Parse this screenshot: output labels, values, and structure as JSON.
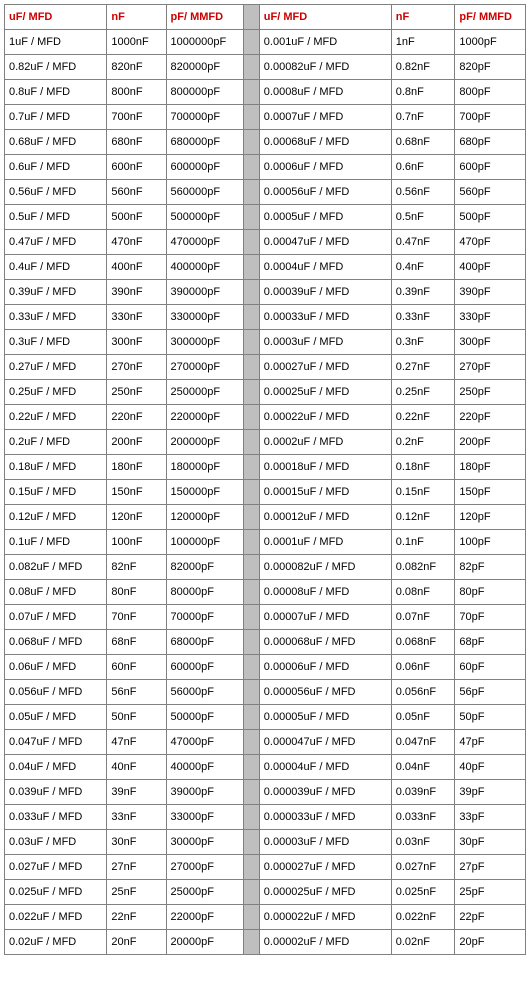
{
  "table": {
    "type": "table",
    "colors": {
      "header_text": "#cc0000",
      "body_text": "#000000",
      "border": "#808080",
      "spacer_bg": "#bfbfbf",
      "background": "#ffffff"
    },
    "fontsize": 11,
    "headers_left": [
      "uF/ MFD",
      "nF",
      "pF/ MMFD"
    ],
    "headers_right": [
      "uF/ MFD",
      "nF",
      "pF/ MMFD"
    ],
    "rows": [
      {
        "l": [
          "1uF / MFD",
          "1000nF",
          "1000000pF"
        ],
        "r": [
          "0.001uF / MFD",
          "1nF",
          "1000pF"
        ]
      },
      {
        "l": [
          "0.82uF / MFD",
          "820nF",
          "820000pF"
        ],
        "r": [
          "0.00082uF / MFD",
          "0.82nF",
          "820pF"
        ]
      },
      {
        "l": [
          "0.8uF / MFD",
          "800nF",
          "800000pF"
        ],
        "r": [
          "0.0008uF / MFD",
          "0.8nF",
          "800pF"
        ]
      },
      {
        "l": [
          "0.7uF / MFD",
          "700nF",
          "700000pF"
        ],
        "r": [
          "0.0007uF / MFD",
          "0.7nF",
          "700pF"
        ]
      },
      {
        "l": [
          "0.68uF / MFD",
          "680nF",
          "680000pF"
        ],
        "r": [
          "0.00068uF / MFD",
          "0.68nF",
          "680pF"
        ]
      },
      {
        "l": [
          "0.6uF / MFD",
          "600nF",
          "600000pF"
        ],
        "r": [
          "0.0006uF / MFD",
          "0.6nF",
          "600pF"
        ]
      },
      {
        "l": [
          "0.56uF / MFD",
          "560nF",
          "560000pF"
        ],
        "r": [
          "0.00056uF / MFD",
          "0.56nF",
          "560pF"
        ]
      },
      {
        "l": [
          "0.5uF / MFD",
          "500nF",
          "500000pF"
        ],
        "r": [
          "0.0005uF / MFD",
          "0.5nF",
          "500pF"
        ]
      },
      {
        "l": [
          "0.47uF / MFD",
          "470nF",
          "470000pF"
        ],
        "r": [
          "0.00047uF / MFD",
          "0.47nF",
          "470pF"
        ]
      },
      {
        "l": [
          "0.4uF / MFD",
          "400nF",
          "400000pF"
        ],
        "r": [
          "0.0004uF / MFD",
          "0.4nF",
          "400pF"
        ]
      },
      {
        "l": [
          "0.39uF / MFD",
          "390nF",
          "390000pF"
        ],
        "r": [
          "0.00039uF / MFD",
          "0.39nF",
          "390pF"
        ]
      },
      {
        "l": [
          "0.33uF / MFD",
          "330nF",
          "330000pF"
        ],
        "r": [
          "0.00033uF / MFD",
          "0.33nF",
          "330pF"
        ]
      },
      {
        "l": [
          "0.3uF / MFD",
          "300nF",
          "300000pF"
        ],
        "r": [
          "0.0003uF / MFD",
          "0.3nF",
          "300pF"
        ]
      },
      {
        "l": [
          "0.27uF / MFD",
          "270nF",
          "270000pF"
        ],
        "r": [
          "0.00027uF / MFD",
          "0.27nF",
          "270pF"
        ]
      },
      {
        "l": [
          "0.25uF / MFD",
          "250nF",
          "250000pF"
        ],
        "r": [
          "0.00025uF / MFD",
          "0.25nF",
          "250pF"
        ]
      },
      {
        "l": [
          "0.22uF / MFD",
          "220nF",
          "220000pF"
        ],
        "r": [
          "0.00022uF / MFD",
          "0.22nF",
          "220pF"
        ]
      },
      {
        "l": [
          "0.2uF / MFD",
          "200nF",
          "200000pF"
        ],
        "r": [
          "0.0002uF / MFD",
          "0.2nF",
          "200pF"
        ]
      },
      {
        "l": [
          "0.18uF / MFD",
          "180nF",
          "180000pF"
        ],
        "r": [
          "0.00018uF / MFD",
          "0.18nF",
          "180pF"
        ]
      },
      {
        "l": [
          "0.15uF / MFD",
          "150nF",
          "150000pF"
        ],
        "r": [
          "0.00015uF / MFD",
          "0.15nF",
          "150pF"
        ]
      },
      {
        "l": [
          "0.12uF / MFD",
          "120nF",
          "120000pF"
        ],
        "r": [
          "0.00012uF / MFD",
          "0.12nF",
          "120pF"
        ]
      },
      {
        "l": [
          "0.1uF / MFD",
          "100nF",
          "100000pF"
        ],
        "r": [
          "0.0001uF / MFD",
          "0.1nF",
          "100pF"
        ]
      },
      {
        "l": [
          "0.082uF / MFD",
          "82nF",
          "82000pF"
        ],
        "r": [
          "0.000082uF / MFD",
          "0.082nF",
          "82pF"
        ]
      },
      {
        "l": [
          "0.08uF / MFD",
          "80nF",
          "80000pF"
        ],
        "r": [
          "0.00008uF / MFD",
          "0.08nF",
          "80pF"
        ]
      },
      {
        "l": [
          "0.07uF / MFD",
          "70nF",
          "70000pF"
        ],
        "r": [
          "0.00007uF / MFD",
          "0.07nF",
          "70pF"
        ]
      },
      {
        "l": [
          "0.068uF / MFD",
          "68nF",
          "68000pF"
        ],
        "r": [
          "0.000068uF / MFD",
          "0.068nF",
          "68pF"
        ]
      },
      {
        "l": [
          "0.06uF / MFD",
          "60nF",
          "60000pF"
        ],
        "r": [
          "0.00006uF / MFD",
          "0.06nF",
          "60pF"
        ]
      },
      {
        "l": [
          "0.056uF / MFD",
          "56nF",
          "56000pF"
        ],
        "r": [
          "0.000056uF / MFD",
          "0.056nF",
          "56pF"
        ]
      },
      {
        "l": [
          "0.05uF / MFD",
          "50nF",
          "50000pF"
        ],
        "r": [
          "0.00005uF / MFD",
          "0.05nF",
          "50pF"
        ]
      },
      {
        "l": [
          "0.047uF / MFD",
          "47nF",
          "47000pF"
        ],
        "r": [
          "0.000047uF / MFD",
          "0.047nF",
          "47pF"
        ]
      },
      {
        "l": [
          "0.04uF / MFD",
          "40nF",
          "40000pF"
        ],
        "r": [
          "0.00004uF / MFD",
          "0.04nF",
          "40pF"
        ]
      },
      {
        "l": [
          "0.039uF / MFD",
          "39nF",
          "39000pF"
        ],
        "r": [
          "0.000039uF / MFD",
          "0.039nF",
          "39pF"
        ]
      },
      {
        "l": [
          "0.033uF / MFD",
          "33nF",
          "33000pF"
        ],
        "r": [
          "0.000033uF / MFD",
          "0.033nF",
          "33pF"
        ]
      },
      {
        "l": [
          "0.03uF / MFD",
          "30nF",
          "30000pF"
        ],
        "r": [
          "0.00003uF / MFD",
          "0.03nF",
          "30pF"
        ]
      },
      {
        "l": [
          "0.027uF / MFD",
          "27nF",
          "27000pF"
        ],
        "r": [
          "0.000027uF / MFD",
          "0.027nF",
          "27pF"
        ]
      },
      {
        "l": [
          "0.025uF / MFD",
          "25nF",
          "25000pF"
        ],
        "r": [
          "0.000025uF / MFD",
          "0.025nF",
          "25pF"
        ]
      },
      {
        "l": [
          "0.022uF / MFD",
          "22nF",
          "22000pF"
        ],
        "r": [
          "0.000022uF / MFD",
          "0.022nF",
          "22pF"
        ]
      },
      {
        "l": [
          "0.02uF / MFD",
          "20nF",
          "20000pF"
        ],
        "r": [
          "0.00002uF / MFD",
          "0.02nF",
          "20pF"
        ]
      }
    ]
  }
}
